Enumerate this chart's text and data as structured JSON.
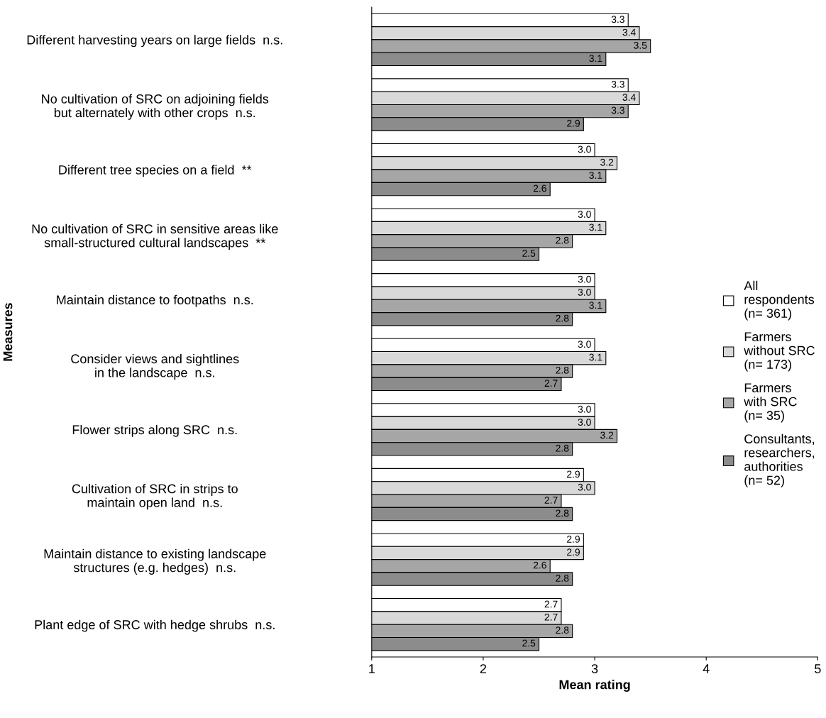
{
  "chart_data": {
    "type": "bar",
    "orientation": "horizontal",
    "xlabel": "Mean rating",
    "ylabel": "Measures",
    "categories": [
      "Different harvesting years on large fields  n.s.",
      "No cultivation of SRC on adjoining fields\nbut alternately with other crops  n.s.",
      "Different tree species on a field  **",
      "No cultivation of SRC in sensitive areas like\nsmall-structured cultural landscapes  **",
      "Maintain distance to footpaths  n.s.",
      "Consider views and sightlines\nin the landscape  n.s.",
      "Flower strips along SRC  n.s.",
      "Cultivation of SRC in strips to\nmaintain open land  n.s.",
      "Maintain distance to existing landscape\nstructures (e.g. hedges)  n.s.",
      "Plant edge of SRC with hedge shrubs  n.s."
    ],
    "series": [
      {
        "name": "All\nrespondents\n(n= 361)",
        "color": "#ffffff",
        "values": [
          3.3,
          3.3,
          3.0,
          3.0,
          3.0,
          3.0,
          3.0,
          2.9,
          2.9,
          2.7
        ],
        "value_labels": [
          "3.3",
          "3.3",
          "3.0",
          "3.0",
          "3.0",
          "3.0",
          "3.0",
          "2.9",
          "2.9",
          "2.7"
        ]
      },
      {
        "name": "Farmers\nwithout SRC\n(n= 173)",
        "color": "#d9d9d9",
        "values": [
          3.4,
          3.4,
          3.2,
          3.1,
          3.0,
          3.1,
          3.0,
          3.0,
          2.9,
          2.7
        ],
        "value_labels": [
          "3.4",
          "3.4",
          "3.2",
          "3.1",
          "3.0",
          "3.1",
          "3.0",
          "3.0",
          "2.9",
          "2.7"
        ]
      },
      {
        "name": "Farmers\nwith SRC\n(n= 35)",
        "color": "#a6a6a6",
        "values": [
          3.5,
          3.3,
          3.1,
          2.8,
          3.1,
          2.8,
          3.2,
          2.7,
          2.6,
          2.8
        ],
        "value_labels": [
          "3.5",
          "3.3",
          "3.1",
          "2.8",
          "3.1",
          "2.8",
          "3.2",
          "2.7",
          "2.6",
          "2.8"
        ]
      },
      {
        "name": "Consultants,\nresearchers,\nauthorities\n(n= 52)",
        "color": "#8c8c8c",
        "values": [
          3.1,
          2.9,
          2.6,
          2.5,
          2.8,
          2.7,
          2.8,
          2.8,
          2.8,
          2.5
        ],
        "value_labels": [
          "3.1",
          "2.9",
          "2.6",
          "2.5",
          "2.8",
          "2.7",
          "2.8",
          "2.8",
          "2.8",
          "2.5"
        ]
      }
    ],
    "xlim": [
      1,
      5
    ],
    "xticks": [
      1,
      2,
      3,
      4,
      5
    ],
    "grid": false,
    "legend": "right"
  }
}
